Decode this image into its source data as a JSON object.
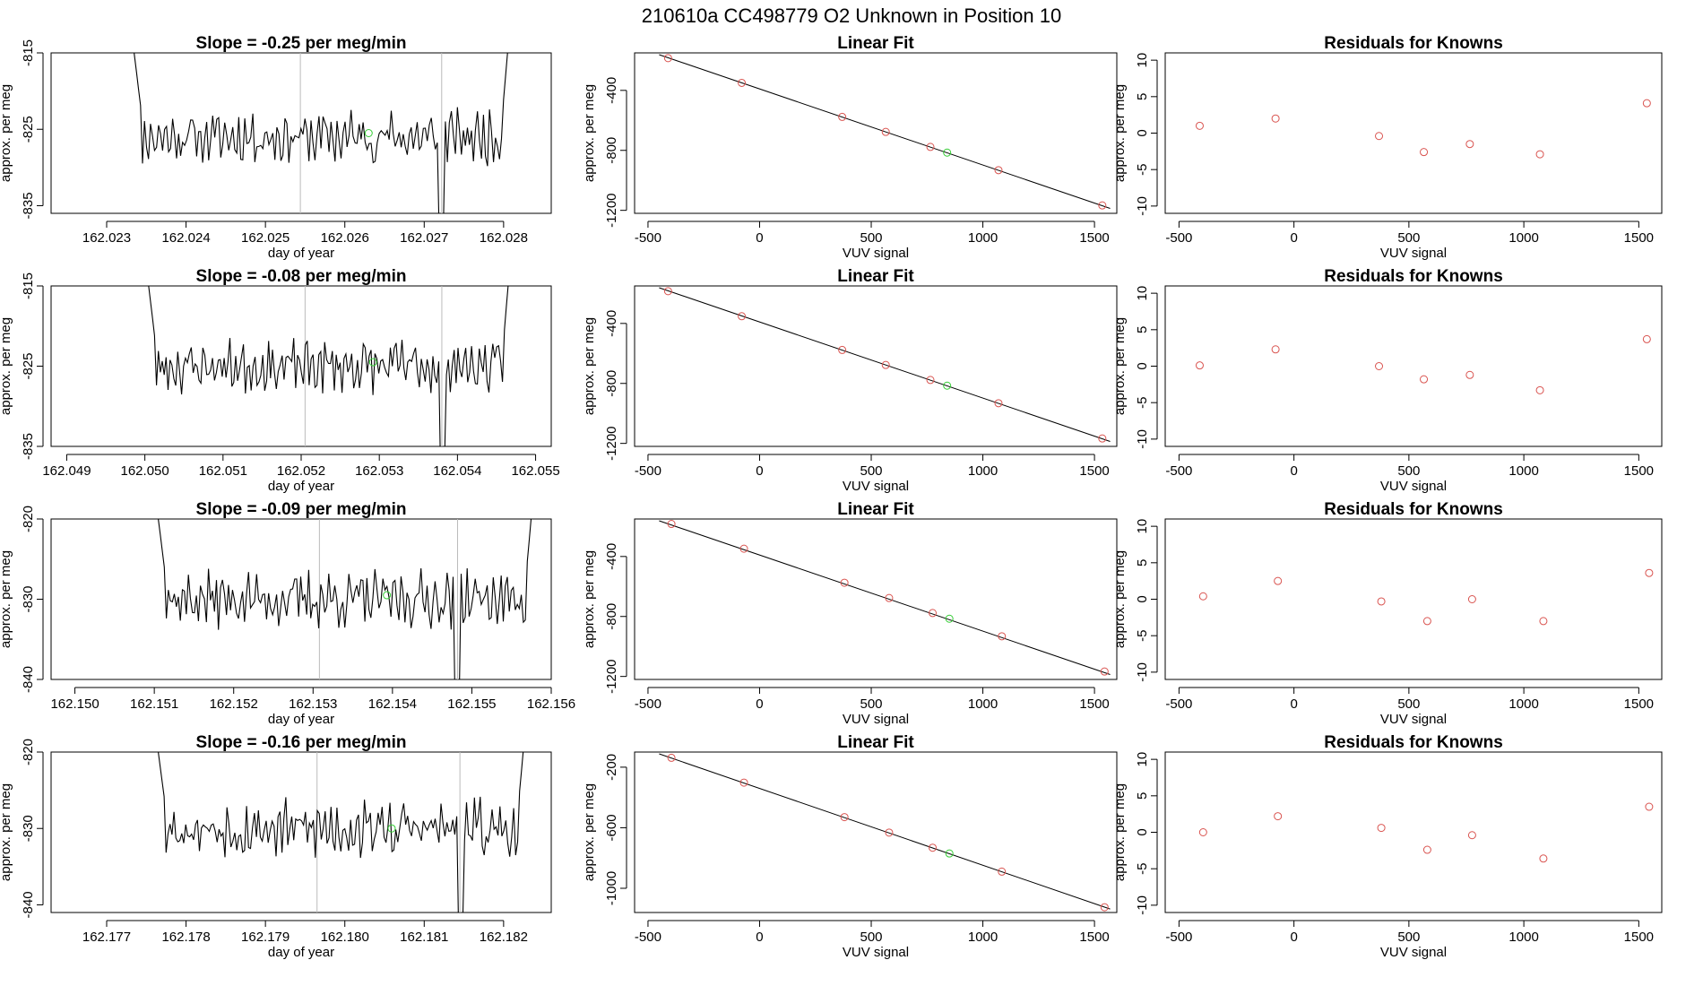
{
  "figure": {
    "title": "210610a      CC498779    O2 Unknown in Position  10"
  },
  "colors": {
    "trace": "#000000",
    "known_point": "#d9534f",
    "unknown_point": "#33cc33",
    "vline": "#bbbbbb",
    "frame": "#000000"
  },
  "chart_data": [
    {
      "type": "line",
      "row": 1,
      "col": 1,
      "title": "Slope =  -0.25  per meg/min",
      "xlabel": "day of year",
      "ylabel": "approx. per meg",
      "xlim": [
        162.0223,
        162.0286
      ],
      "ylim": [
        -836,
        -815
      ],
      "xticks": [
        "162.023",
        "162.024",
        "162.025",
        "162.026",
        "162.027",
        "162.028"
      ],
      "yticks": [
        "-815",
        "-825",
        "-835"
      ],
      "start": 162.0233,
      "end": 162.0281,
      "base": -826,
      "amp": 2.6,
      "seed": 11,
      "vlines": [
        162.02544,
        162.02722
      ],
      "unknown_point": {
        "x": 162.0263,
        "y": -825.5
      }
    },
    {
      "type": "scatter",
      "row": 1,
      "col": 2,
      "title": "Linear Fit",
      "xlabel": "VUV signal",
      "ylabel": "approx. per meg",
      "xlim": [
        -560,
        1600
      ],
      "ylim": [
        -1220,
        -150
      ],
      "xticks": [
        "-500",
        "0",
        "500",
        "1000",
        "1500"
      ],
      "yticks": [
        "-400",
        "-800",
        "-1200"
      ],
      "fit_line": {
        "x": [
          -450,
          1570
        ],
        "y": [
          -162,
          -1187
        ]
      },
      "known_points": {
        "x": [
          -410,
          -80,
          370,
          565,
          765,
          1070,
          1535
        ],
        "y": [
          -185,
          -350,
          -577,
          -677,
          -777,
          -932,
          -1167
        ]
      },
      "unknown_point": {
        "x": 840,
        "y": -815
      }
    },
    {
      "type": "scatter",
      "row": 1,
      "col": 3,
      "title": "Residuals for Knowns",
      "xlabel": "VUV signal",
      "ylabel": "approx. per meg",
      "xlim": [
        -560,
        1600
      ],
      "ylim": [
        -11,
        11
      ],
      "xticks": [
        "-500",
        "0",
        "500",
        "1000",
        "1500"
      ],
      "yticks": [
        "10",
        "5",
        "0",
        "-5",
        "-10"
      ],
      "known_points": {
        "x": [
          -410,
          -80,
          370,
          565,
          765,
          1070,
          1535
        ],
        "y": [
          1.0,
          2.0,
          -0.4,
          -2.6,
          -1.5,
          -2.9,
          4.1
        ]
      }
    },
    {
      "type": "line",
      "row": 2,
      "col": 1,
      "title": "Slope =  -0.08  per meg/min",
      "xlabel": "day of year",
      "ylabel": "approx. per meg",
      "xlim": [
        162.0488,
        162.0552
      ],
      "ylim": [
        -835,
        -815
      ],
      "xticks": [
        "162.049",
        "162.050",
        "162.051",
        "162.052",
        "162.053",
        "162.054",
        "162.055"
      ],
      "yticks": [
        "-815",
        "-825",
        "-835"
      ],
      "start": 162.05,
      "end": 162.0547,
      "base": -825,
      "amp": 2.4,
      "seed": 23,
      "vlines": [
        162.05205,
        162.0538
      ],
      "unknown_point": {
        "x": 162.05292,
        "y": -824.5
      }
    },
    {
      "type": "scatter",
      "row": 2,
      "col": 2,
      "title": "Linear Fit",
      "xlabel": "VUV signal",
      "ylabel": "approx. per meg",
      "xlim": [
        -560,
        1600
      ],
      "ylim": [
        -1220,
        -150
      ],
      "xticks": [
        "-500",
        "0",
        "500",
        "1000",
        "1500"
      ],
      "yticks": [
        "-400",
        "-800",
        "-1200"
      ],
      "fit_line": {
        "x": [
          -450,
          1570
        ],
        "y": [
          -162,
          -1187
        ]
      },
      "known_points": {
        "x": [
          -410,
          -80,
          370,
          565,
          765,
          1070,
          1535
        ],
        "y": [
          -185,
          -352,
          -577,
          -677,
          -777,
          -932,
          -1167
        ]
      },
      "unknown_point": {
        "x": 840,
        "y": -815
      }
    },
    {
      "type": "scatter",
      "row": 2,
      "col": 3,
      "title": "Residuals for Knowns",
      "xlabel": "VUV signal",
      "ylabel": "approx. per meg",
      "xlim": [
        -560,
        1600
      ],
      "ylim": [
        -11,
        11
      ],
      "xticks": [
        "-500",
        "0",
        "500",
        "1000",
        "1500"
      ],
      "yticks": [
        "10",
        "5",
        "0",
        "-5",
        "-10"
      ],
      "known_points": {
        "x": [
          -410,
          -80,
          370,
          565,
          765,
          1070,
          1535
        ],
        "y": [
          0.1,
          2.3,
          0.0,
          -1.8,
          -1.2,
          -3.3,
          3.7
        ]
      }
    },
    {
      "type": "line",
      "row": 3,
      "col": 1,
      "title": "Slope =  -0.09  per meg/min",
      "xlabel": "day of year",
      "ylabel": "approx. per meg",
      "xlim": [
        162.1497,
        162.156
      ],
      "ylim": [
        -840,
        -820
      ],
      "xticks": [
        "162.150",
        "162.151",
        "162.152",
        "162.153",
        "162.154",
        "162.155",
        "162.156"
      ],
      "yticks": [
        "-820",
        "-830",
        "-840"
      ],
      "start": 162.151,
      "end": 162.1558,
      "base": -830,
      "amp": 2.6,
      "seed": 37,
      "vlines": [
        162.15308,
        162.15482
      ],
      "unknown_point": {
        "x": 162.15393,
        "y": -829.5
      }
    },
    {
      "type": "scatter",
      "row": 3,
      "col": 2,
      "title": "Linear Fit",
      "xlabel": "VUV signal",
      "ylabel": "approx. per meg",
      "xlim": [
        -560,
        1600
      ],
      "ylim": [
        -1220,
        -150
      ],
      "xticks": [
        "-500",
        "0",
        "500",
        "1000",
        "1500"
      ],
      "yticks": [
        "-400",
        "-800",
        "-1200"
      ],
      "fit_line": {
        "x": [
          -450,
          1570
        ],
        "y": [
          -162,
          -1187
        ]
      },
      "known_points": {
        "x": [
          -395,
          -70,
          380,
          580,
          775,
          1085,
          1545
        ],
        "y": [
          -183,
          -348,
          -575,
          -677,
          -777,
          -932,
          -1167
        ]
      },
      "unknown_point": {
        "x": 850,
        "y": -815
      }
    },
    {
      "type": "scatter",
      "row": 3,
      "col": 3,
      "title": "Residuals for Knowns",
      "xlabel": "VUV signal",
      "ylabel": "approx. per meg",
      "xlim": [
        -560,
        1600
      ],
      "ylim": [
        -11,
        11
      ],
      "xticks": [
        "-500",
        "0",
        "500",
        "1000",
        "1500"
      ],
      "yticks": [
        "10",
        "5",
        "0",
        "-5",
        "-10"
      ],
      "known_points": {
        "x": [
          -395,
          -70,
          380,
          580,
          775,
          1085,
          1545
        ],
        "y": [
          0.4,
          2.5,
          -0.3,
          -3.0,
          0.0,
          -3.0,
          3.6
        ]
      }
    },
    {
      "type": "line",
      "row": 4,
      "col": 1,
      "title": "Slope =  -0.16  per meg/min",
      "xlabel": "day of year",
      "ylabel": "approx. per meg",
      "xlim": [
        162.1763,
        162.1826
      ],
      "ylim": [
        -841,
        -820
      ],
      "xticks": [
        "162.177",
        "162.178",
        "162.179",
        "162.180",
        "162.181",
        "162.182"
      ],
      "yticks": [
        "-820",
        "-830",
        "-840"
      ],
      "start": 162.1776,
      "end": 162.1823,
      "base": -830,
      "amp": 2.8,
      "seed": 53,
      "vlines": [
        162.17965,
        162.18145
      ],
      "unknown_point": {
        "x": 162.18059,
        "y": -830
      }
    },
    {
      "type": "scatter",
      "row": 4,
      "col": 2,
      "title": "Linear Fit",
      "xlabel": "VUV signal",
      "ylabel": "approx. per meg",
      "xlim": [
        -560,
        1600
      ],
      "ylim": [
        -1160,
        -100
      ],
      "xticks": [
        "-500",
        "0",
        "500",
        "1000",
        "1500"
      ],
      "yticks": [
        "-200",
        "-600",
        "-1000"
      ],
      "fit_line": {
        "x": [
          -450,
          1570
        ],
        "y": [
          -112,
          -1137
        ]
      },
      "known_points": {
        "x": [
          -395,
          -70,
          380,
          580,
          775,
          1085,
          1545
        ],
        "y": [
          -138,
          -302,
          -530,
          -632,
          -732,
          -890,
          -1125
        ]
      },
      "unknown_point": {
        "x": 850,
        "y": -770
      }
    },
    {
      "type": "scatter",
      "row": 4,
      "col": 3,
      "title": "Residuals for Knowns",
      "xlabel": "VUV signal",
      "ylabel": "approx. per meg",
      "xlim": [
        -560,
        1600
      ],
      "ylim": [
        -11,
        11
      ],
      "xticks": [
        "-500",
        "0",
        "500",
        "1000",
        "1500"
      ],
      "yticks": [
        "10",
        "5",
        "0",
        "-5",
        "-10"
      ],
      "known_points": {
        "x": [
          -395,
          -70,
          380,
          580,
          775,
          1085,
          1545
        ],
        "y": [
          0.0,
          2.2,
          0.6,
          -2.4,
          -0.4,
          -3.6,
          3.5
        ]
      }
    }
  ]
}
